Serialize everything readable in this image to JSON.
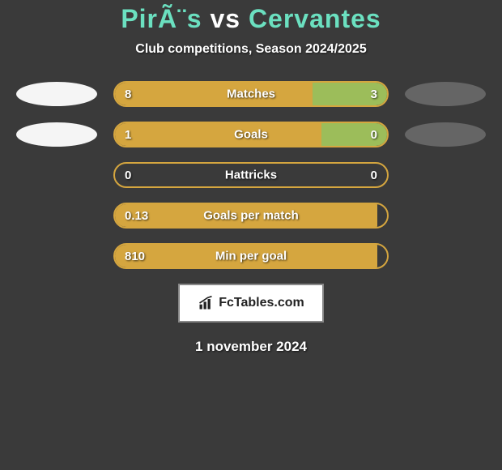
{
  "title": {
    "player1": "PirÃ¨s",
    "vs": " vs ",
    "player2": "Cervantes"
  },
  "subtitle": "Club competitions, Season 2024/2025",
  "title_colors": {
    "p1": "#6be0c0",
    "vs": "#ffffff",
    "p2": "#6be0c0"
  },
  "bars": [
    {
      "label": "Matches",
      "left_val": "8",
      "right_val": "3",
      "left_pct": 72.7,
      "right_pct": 27.3,
      "left_color": "#d5a63f",
      "right_color": "#9cbd5a",
      "border_color": "#d5a63f",
      "show_left_ellipse": true,
      "show_right_ellipse": true
    },
    {
      "label": "Goals",
      "left_val": "1",
      "right_val": "0",
      "left_pct": 76,
      "right_pct": 24,
      "left_color": "#d5a63f",
      "right_color": "#9cbd5a",
      "border_color": "#d5a63f",
      "show_left_ellipse": true,
      "show_right_ellipse": true
    },
    {
      "label": "Hattricks",
      "left_val": "0",
      "right_val": "0",
      "left_pct": 100,
      "right_pct": 0,
      "left_color": "transparent",
      "right_color": "transparent",
      "border_color": "#d5a63f",
      "show_left_ellipse": false,
      "show_right_ellipse": false
    },
    {
      "label": "Goals per match",
      "left_val": "0.13",
      "right_val": "",
      "left_pct": 100,
      "right_pct": 0,
      "left_color": "#d5a63f",
      "right_color": "transparent",
      "border_color": "#d5a63f",
      "show_left_ellipse": false,
      "show_right_ellipse": false
    },
    {
      "label": "Min per goal",
      "left_val": "810",
      "right_val": "",
      "left_pct": 100,
      "right_pct": 0,
      "left_color": "#d5a63f",
      "right_color": "transparent",
      "border_color": "#d5a63f",
      "show_left_ellipse": false,
      "show_right_ellipse": false
    }
  ],
  "badge": {
    "text": "FcTables.com"
  },
  "date": "1 november 2024",
  "ellipse_colors": {
    "left": "#f5f5f5",
    "right": "#656565"
  },
  "background_color": "#3a3a3a"
}
